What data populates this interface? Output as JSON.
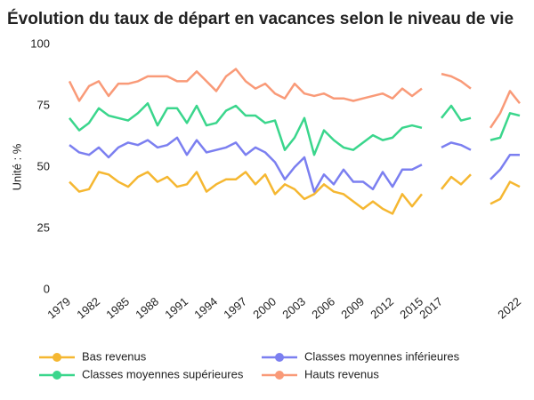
{
  "chart_data": {
    "type": "line",
    "title": "Évolution du taux de départ en vacances selon le niveau de vie",
    "y_label": "Unité : %",
    "categories": [
      "1979",
      null,
      null,
      "1982",
      null,
      null,
      "1985",
      null,
      null,
      "1988",
      null,
      null,
      "1991",
      null,
      null,
      "1994",
      null,
      null,
      "1997",
      null,
      null,
      "2000",
      null,
      null,
      "2003",
      null,
      null,
      "2006",
      null,
      null,
      "2009",
      null,
      null,
      "2012",
      null,
      null,
      "2015",
      null,
      "2017",
      null,
      null,
      null,
      null,
      null,
      null,
      null,
      "2022"
    ],
    "ylim": [
      0,
      100
    ],
    "yticks": [
      0,
      25,
      50,
      75,
      100
    ],
    "series": [
      {
        "name": "Bas revenus",
        "color": "#f5b731",
        "values": [
          44,
          40,
          41,
          48,
          47,
          44,
          42,
          46,
          48,
          44,
          46,
          42,
          43,
          48,
          40,
          43,
          45,
          45,
          48,
          43,
          47,
          39,
          43,
          41,
          37,
          39,
          43,
          40,
          39,
          36,
          33,
          36,
          33,
          31,
          39,
          34,
          39,
          null,
          41,
          46,
          43,
          47,
          null,
          35,
          37,
          44,
          42
        ]
      },
      {
        "name": "Classes moyennes inférieures",
        "color": "#7b7ff0",
        "values": [
          59,
          56,
          55,
          58,
          54,
          58,
          60,
          59,
          61,
          58,
          59,
          62,
          55,
          61,
          56,
          57,
          58,
          60,
          55,
          58,
          56,
          52,
          45,
          50,
          54,
          40,
          47,
          43,
          49,
          44,
          44,
          41,
          48,
          42,
          49,
          49,
          51,
          null,
          58,
          60,
          59,
          57,
          null,
          45,
          49,
          55,
          55
        ]
      },
      {
        "name": "Classes moyennes supérieures",
        "color": "#3ad68c",
        "values": [
          70,
          65,
          68,
          74,
          71,
          70,
          69,
          72,
          76,
          67,
          74,
          74,
          68,
          75,
          67,
          68,
          73,
          75,
          71,
          71,
          68,
          69,
          57,
          62,
          70,
          55,
          65,
          61,
          58,
          57,
          60,
          63,
          61,
          62,
          66,
          67,
          66,
          null,
          70,
          75,
          69,
          70,
          null,
          61,
          62,
          72,
          71
        ]
      },
      {
        "name": "Hauts revenus",
        "color": "#f99a78",
        "values": [
          85,
          77,
          83,
          85,
          79,
          84,
          84,
          85,
          87,
          87,
          87,
          85,
          85,
          89,
          85,
          81,
          87,
          90,
          85,
          82,
          84,
          80,
          78,
          84,
          80,
          79,
          80,
          78,
          78,
          77,
          78,
          79,
          80,
          78,
          82,
          79,
          82,
          null,
          88,
          87,
          85,
          82,
          null,
          66,
          72,
          81,
          76
        ]
      }
    ]
  }
}
